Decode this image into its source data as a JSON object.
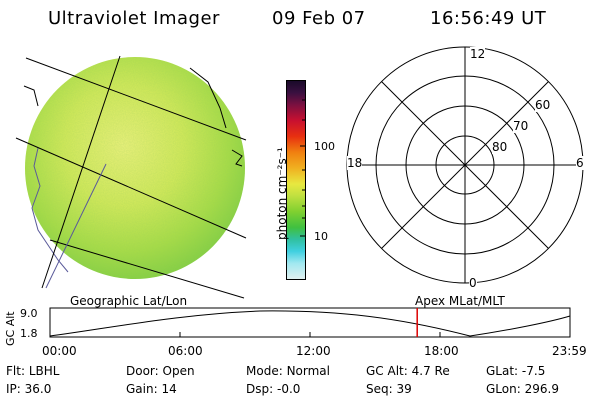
{
  "header": {
    "instrument": "Ultraviolet Imager",
    "date": "09 Feb 07",
    "time": "16:56:49 UT"
  },
  "colorbar": {
    "unit_label": "photon cm⁻²s⁻¹",
    "ticks": [
      "100",
      "10"
    ],
    "scale": "log"
  },
  "polar": {
    "mlt_labels": [
      "12",
      "18",
      "6",
      "0"
    ],
    "lat_labels": [
      "60",
      "70",
      "80"
    ]
  },
  "timeline": {
    "left_label": "Geographic Lat/Lon",
    "right_label": "Apex MLat/MLT",
    "y_axis_label": "GC Alt",
    "y_ticks": [
      "9.0",
      "1.8"
    ],
    "x_ticks": [
      "00:00",
      "06:00",
      "12:00",
      "18:00",
      "23:59"
    ],
    "current_marker_time": "16:56:49"
  },
  "status": {
    "rows": [
      [
        {
          "k": "Flt:",
          "v": "LBHL"
        },
        {
          "k": "Door:",
          "v": "Open"
        },
        {
          "k": "Mode:",
          "v": "Normal"
        },
        {
          "k": "GC Alt:",
          "v": "4.7 Re"
        },
        {
          "k": "GLat:",
          "v": "-7.5"
        }
      ],
      [
        {
          "k": "IP:",
          "v": "36.0"
        },
        {
          "k": "Gain:",
          "v": "14"
        },
        {
          "k": "Dsp:",
          "v": "-0.0"
        },
        {
          "k": "Seq:",
          "v": "39"
        },
        {
          "k": "GLon:",
          "v": "296.9"
        }
      ]
    ]
  },
  "colors": {
    "marker": "#dd0000",
    "disc_main": "#b8e04a",
    "disc_light": "#e8f07a"
  }
}
